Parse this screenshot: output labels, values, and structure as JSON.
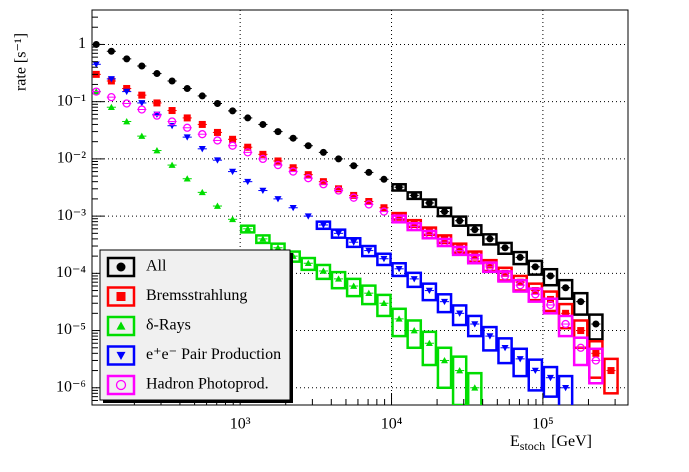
{
  "chart_data": {
    "type": "scatter",
    "ylabel": "rate [s⁻¹]",
    "xlabel": "E",
    "xlabel_sub": "stoch",
    "xlabel_unit": "[GeV]",
    "xscale": "log",
    "yscale": "log",
    "grid": true,
    "legend": "lower left",
    "xlim": [
      105,
      365000
    ],
    "ylim": [
      5e-07,
      4
    ],
    "xticks": [
      {
        "value": 1000,
        "label": "10³"
      },
      {
        "value": 10000,
        "label": "10⁴"
      },
      {
        "value": 100000,
        "label": "10⁵"
      }
    ],
    "yticks": [
      {
        "value": 1e-06,
        "label": "10⁻⁶"
      },
      {
        "value": 1e-05,
        "label": "10⁻⁵"
      },
      {
        "value": 0.0001,
        "label": "10⁻⁴"
      },
      {
        "value": 0.001,
        "label": "10⁻³"
      },
      {
        "value": 0.01,
        "label": "10⁻²"
      },
      {
        "value": 0.1,
        "label": "10⁻¹"
      },
      1
    ],
    "x": [
      112,
      141,
      178,
      224,
      282,
      355,
      447,
      562,
      708,
      891,
      1122,
      1413,
      1778,
      2239,
      2818,
      3548,
      4467,
      5623,
      7079,
      8913,
      11220,
      14125,
      17783,
      22387,
      28184,
      35481,
      44668,
      56234,
      70795,
      89125,
      112202,
      141254,
      177828,
      223872,
      281838
    ],
    "series": [
      {
        "name": "All",
        "color": "#000000",
        "marker": "filled-circle",
        "values": [
          1.0,
          0.76,
          0.56,
          0.42,
          0.31,
          0.23,
          0.17,
          0.126,
          0.093,
          0.069,
          0.052,
          0.04,
          0.03,
          0.023,
          0.017,
          0.013,
          0.01,
          0.0076,
          0.0058,
          0.0044,
          0.0032,
          0.0023,
          0.0017,
          0.0012,
          0.00083,
          0.00058,
          0.0004,
          0.00028,
          0.00019,
          0.00013,
          9e-05,
          5.6e-05,
          3.2e-05,
          1.3e-05,
          null
        ],
        "errors": [
          null,
          null,
          null,
          null,
          null,
          null,
          null,
          null,
          null,
          null,
          null,
          null,
          null,
          null,
          null,
          null,
          null,
          null,
          null,
          null,
          0.0004,
          0.0003,
          0.00025,
          0.0002,
          0.00015,
          0.00011,
          8e-05,
          6e-05,
          4.5e-05,
          3.5e-05,
          2.8e-05,
          2e-05,
          1.3e-05,
          6e-06,
          null
        ]
      },
      {
        "name": "Bremsstrahlung",
        "color": "#ff0000",
        "marker": "filled-square",
        "values": [
          0.3,
          0.23,
          0.17,
          0.13,
          0.095,
          0.07,
          0.052,
          0.04,
          0.029,
          0.022,
          0.016,
          0.012,
          0.0092,
          0.007,
          0.0053,
          0.004,
          0.003,
          0.0023,
          0.0018,
          0.0014,
          0.001,
          0.00075,
          0.00055,
          0.0004,
          0.00028,
          0.0002,
          0.00014,
          0.0001,
          7e-05,
          5e-05,
          3.5e-05,
          2e-05,
          1e-05,
          4e-06,
          2e-06
        ],
        "errors": [
          null,
          null,
          null,
          null,
          null,
          null,
          null,
          null,
          null,
          null,
          null,
          null,
          null,
          null,
          null,
          null,
          null,
          null,
          null,
          null,
          0.00013,
          0.0001,
          8e-05,
          6e-05,
          5e-05,
          4e-05,
          3e-05,
          2.5e-05,
          2e-05,
          1.6e-05,
          1.3e-05,
          9e-06,
          5e-06,
          2.5e-06,
          1.2e-06
        ]
      },
      {
        "name": "δ-Rays",
        "color": "#00dd00",
        "marker": "triangle-up",
        "values": [
          0.15,
          0.08,
          0.045,
          0.025,
          0.014,
          0.0078,
          0.0045,
          0.0026,
          0.0015,
          0.00088,
          0.0006,
          0.0004,
          0.00028,
          0.0002,
          0.00015,
          0.00011,
          8e-05,
          6e-05,
          4.5e-05,
          3e-05,
          1.6e-05,
          1e-05,
          6e-06,
          3e-06,
          2e-06,
          1e-06,
          null,
          null,
          null,
          null,
          null,
          null,
          null,
          null,
          null
        ],
        "errors": [
          null,
          null,
          null,
          null,
          null,
          null,
          null,
          null,
          null,
          null,
          8e-05,
          6e-05,
          5e-05,
          4e-05,
          3.5e-05,
          3e-05,
          2.5e-05,
          2e-05,
          1.6e-05,
          1.2e-05,
          8e-06,
          5e-06,
          3.5e-06,
          2e-06,
          1.5e-06,
          8e-07,
          null,
          null,
          null,
          null,
          null,
          null,
          null,
          null,
          null
        ]
      },
      {
        "name": "e⁺e⁻ Pair Production",
        "color": "#0000ff",
        "marker": "triangle-down",
        "values": [
          0.45,
          0.25,
          0.15,
          0.095,
          0.06,
          0.038,
          0.024,
          0.015,
          0.0095,
          0.006,
          0.004,
          0.0028,
          0.002,
          0.0014,
          0.001,
          0.0007,
          0.0005,
          0.00035,
          0.00025,
          0.00018,
          0.00012,
          8e-05,
          5e-05,
          3.2e-05,
          2e-05,
          1.3e-05,
          8e-06,
          5e-06,
          3.2e-06,
          2e-06,
          1.5e-06,
          1e-06,
          null,
          null,
          null
        ],
        "errors": [
          null,
          null,
          null,
          null,
          null,
          null,
          null,
          null,
          null,
          null,
          null,
          null,
          null,
          null,
          null,
          0.0001,
          8e-05,
          6e-05,
          5e-05,
          4e-05,
          3e-05,
          2.2e-05,
          1.6e-05,
          1.1e-05,
          7.5e-06,
          5e-06,
          3.5e-06,
          2.3e-06,
          1.6e-06,
          1.1e-06,
          8e-07,
          6e-07,
          null,
          null,
          null
        ]
      },
      {
        "name": "Hadron Photoprod.",
        "color": "#ff00ff",
        "marker": "open-circle",
        "values": [
          0.15,
          0.12,
          0.093,
          0.073,
          0.057,
          0.045,
          0.035,
          0.027,
          0.021,
          0.017,
          0.013,
          0.01,
          0.0078,
          0.006,
          0.0046,
          0.0036,
          0.0028,
          0.0021,
          0.0016,
          0.0012,
          0.0009,
          0.00066,
          0.00048,
          0.00035,
          0.00025,
          0.00018,
          0.00013,
          9e-05,
          6.2e-05,
          4.3e-05,
          2.8e-05,
          1.3e-05,
          5e-06,
          3e-06,
          null
        ],
        "errors": [
          null,
          null,
          null,
          null,
          null,
          null,
          null,
          null,
          null,
          null,
          null,
          null,
          null,
          null,
          null,
          null,
          null,
          null,
          null,
          null,
          0.00012,
          9e-05,
          7e-05,
          5e-05,
          4e-05,
          3e-05,
          2.4e-05,
          1.8e-05,
          1.4e-05,
          1.1e-05,
          8e-06,
          5e-06,
          2.5e-06,
          1.8e-06,
          null
        ]
      }
    ]
  }
}
